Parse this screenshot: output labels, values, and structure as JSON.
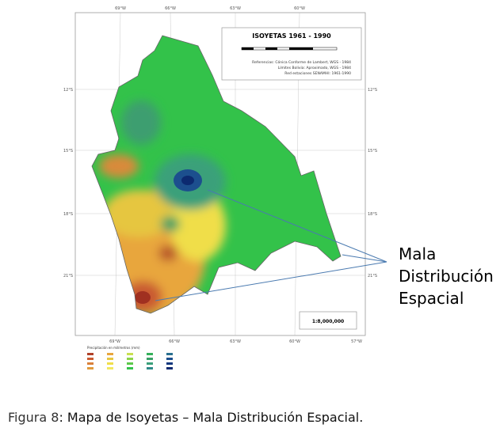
{
  "map": {
    "title": "ISOYETAS 1961 - 1990",
    "references": [
      "Referencias: Cónica Conforme de Lambert, WGS - 1984",
      "Límites Bolivia: Aproximado, WGS - 1984",
      "Red estaciones SENAMHI: 1961-1990"
    ],
    "top_longitudes": [
      "69°W",
      "66°W",
      "63°W",
      "60°W"
    ],
    "bottom_longitudes": [
      "69°W",
      "66°W",
      "63°W",
      "60°W",
      "57°W"
    ],
    "latitudes": [
      "12°S",
      "15°S",
      "18°S",
      "21°S"
    ],
    "scale": "1:8,000,000",
    "legend_title": "Precipitación en milímetros (mm)"
  },
  "annotation": [
    "Mala",
    "Distribución",
    "Espacial"
  ],
  "caption": {
    "label": "Figura 8",
    "text": ": Mapa de Isoyetas – Mala Distribución Espacial."
  }
}
